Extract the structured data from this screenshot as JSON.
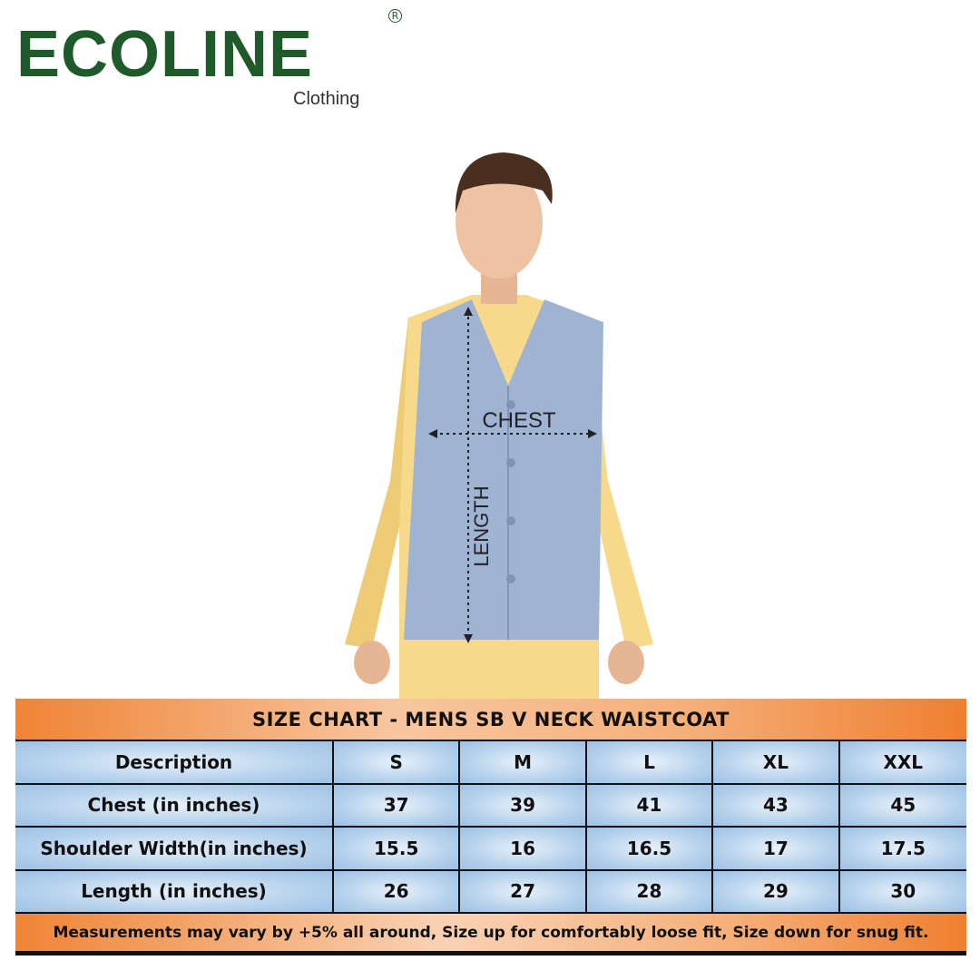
{
  "brand": {
    "name": "ECOLINE",
    "sub": "Clothing",
    "reg": "R"
  },
  "figure": {
    "chest_label": "CHEST",
    "length_label": "LENGTH"
  },
  "colors": {
    "brand_green": "#1f5a2a",
    "header_orange": "#ef8435",
    "cell_blue": "#b6d2ec",
    "vest": "#9fb3d3",
    "kurta": "#f6d98a"
  },
  "size_chart": {
    "title": "SIZE CHART - MENS SB V NECK WAISTCOAT",
    "header": [
      "Description",
      "S",
      "M",
      "L",
      "XL",
      "XXL"
    ],
    "rows": [
      [
        "Chest (in inches)",
        "37",
        "39",
        "41",
        "43",
        "45"
      ],
      [
        "Shoulder Width(in inches)",
        "15.5",
        "16",
        "16.5",
        "17",
        "17.5"
      ],
      [
        "Length (in inches)",
        "26",
        "27",
        "28",
        "29",
        "30"
      ]
    ],
    "footnote": "Measurements may vary by +5% all around, Size up for comfortably loose fit, Size down for snug fit."
  }
}
